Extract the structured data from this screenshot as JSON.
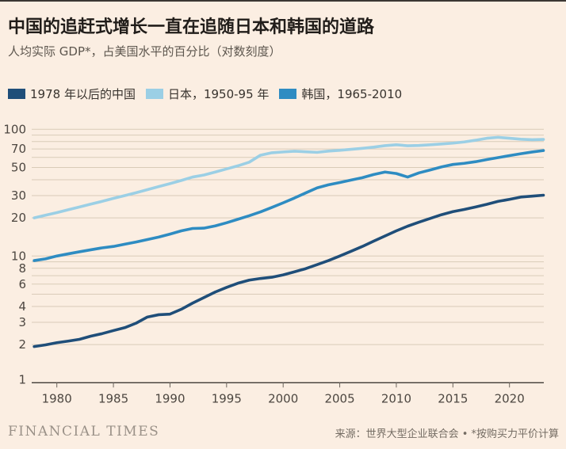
{
  "page": {
    "background": "#FBEEE2"
  },
  "header": {
    "title": "中国的追赶式增长一直在追随日本和韩国的道路",
    "subtitle": "人均实际 GDP*，占美国水平的百分比（对数刻度）"
  },
  "legend": [
    {
      "label": "1978 年以后的中国",
      "color": "#1F4E79"
    },
    {
      "label": "日本，1950-95 年",
      "color": "#9BCFE5"
    },
    {
      "label": "韩国，1965-2010",
      "color": "#2E8CC2"
    }
  ],
  "chart_data": {
    "type": "line",
    "title": "中国的追赶式增长一直在追随日本和韩国的道路",
    "ylabel": "人均实际 GDP，占美国水平的百分比",
    "scale": "log",
    "grid": true,
    "x_axis": {
      "range": [
        1978,
        2023
      ],
      "ticks": [
        1980,
        1985,
        1990,
        1995,
        2000,
        2005,
        2010,
        2015,
        2020
      ]
    },
    "y_axis": {
      "range": [
        1,
        100
      ],
      "labeled_ticks": [
        1,
        2,
        3,
        4,
        6,
        8,
        10,
        20,
        30,
        50,
        70,
        100
      ],
      "gridline_values": [
        2,
        3,
        4,
        5,
        6,
        7,
        8,
        9,
        10,
        20,
        30,
        40,
        50,
        60,
        70,
        80,
        90,
        100
      ]
    },
    "series": [
      {
        "name": "japan",
        "label": "日本，1950-95 年",
        "color": "#9BCFE5",
        "actual_years": "1950-1995",
        "values": [
          20.0,
          21.0,
          22.0,
          23.2,
          24.4,
          25.7,
          27.0,
          28.5,
          30.0,
          31.6,
          33.4,
          35.3,
          37.3,
          39.5,
          42.0,
          43.6,
          46.0,
          48.7,
          51.5,
          55.0,
          62.5,
          65.3,
          66.3,
          67.2,
          66.5,
          65.8,
          67.3,
          68.3,
          69.5,
          70.8,
          72.3,
          74.3,
          75.5,
          74.2,
          74.6,
          75.5,
          76.6,
          77.8,
          79.5,
          82.0,
          85.0,
          86.5,
          85.0,
          83.5,
          82.8,
          83.2
        ]
      },
      {
        "name": "korea",
        "label": "韩国，1965-2010",
        "color": "#2E8CC2",
        "actual_years": "1965-2010",
        "values": [
          9.2,
          9.5,
          10.0,
          10.4,
          10.8,
          11.2,
          11.6,
          11.9,
          12.4,
          12.9,
          13.5,
          14.1,
          14.9,
          15.8,
          16.5,
          16.6,
          17.3,
          18.3,
          19.5,
          20.8,
          22.3,
          24.2,
          26.3,
          28.7,
          31.5,
          34.5,
          36.5,
          38.0,
          39.8,
          41.5,
          44.0,
          46.0,
          44.8,
          42.0,
          45.3,
          47.8,
          50.5,
          52.8,
          53.9,
          55.5,
          57.7,
          59.8,
          62.0,
          64.2,
          66.2,
          68.0
        ]
      },
      {
        "name": "china",
        "label": "1978 年以后的中国",
        "color": "#1F4E79",
        "actual_years": "1978-2023",
        "values": [
          1.93,
          1.99,
          2.07,
          2.13,
          2.2,
          2.33,
          2.44,
          2.58,
          2.72,
          2.95,
          3.3,
          3.44,
          3.48,
          3.8,
          4.25,
          4.7,
          5.2,
          5.65,
          6.1,
          6.45,
          6.65,
          6.8,
          7.1,
          7.5,
          7.95,
          8.55,
          9.2,
          10.0,
          10.9,
          11.9,
          13.1,
          14.4,
          15.8,
          17.2,
          18.5,
          19.8,
          21.2,
          22.4,
          23.3,
          24.4,
          25.6,
          27.0,
          28.0,
          29.2,
          29.7,
          30.2
        ]
      }
    ]
  },
  "footer": {
    "brand": "FINANCIAL TIMES",
    "source": "来源：世界大型企业联合会 • *按购买力平价计算"
  }
}
